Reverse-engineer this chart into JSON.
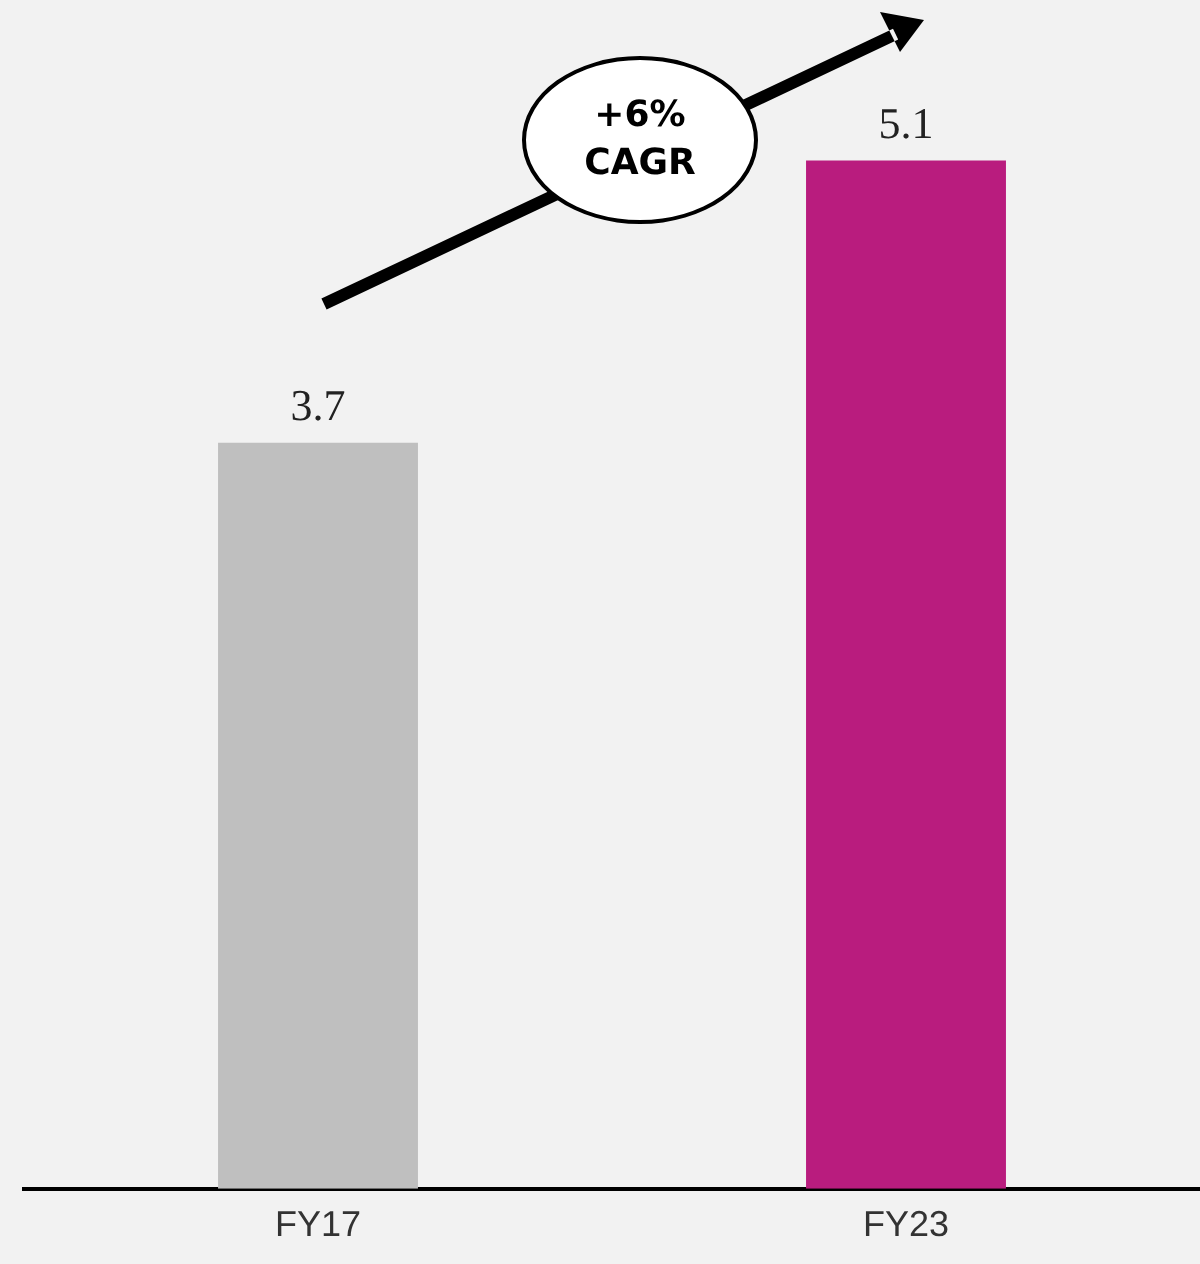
{
  "chart_data": {
    "type": "bar",
    "categories": [
      "FY17",
      "FY23"
    ],
    "values": [
      3.7,
      5.1
    ],
    "colors": [
      "#bfbfbf",
      "#b91c7e"
    ],
    "data_labels": true,
    "annotations": [
      "+6% CAGR"
    ],
    "grid": false,
    "legend": false
  }
}
